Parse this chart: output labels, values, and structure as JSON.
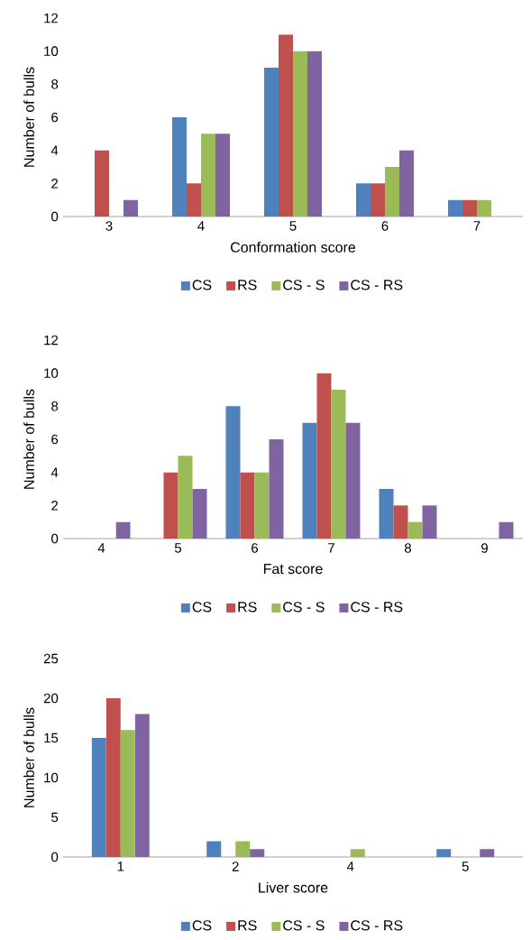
{
  "chart_data": [
    {
      "type": "bar",
      "xlabel": "Conformation score",
      "ylabel": "Number of bulls",
      "categories": [
        "3",
        "4",
        "5",
        "6",
        "7"
      ],
      "ylim": [
        0,
        12
      ],
      "yticks": [
        0,
        2,
        4,
        6,
        8,
        10,
        12
      ],
      "legend": "bottom",
      "series": [
        {
          "name": "CS",
          "color": "#4f81bd",
          "values": [
            0,
            6,
            9,
            2,
            1
          ]
        },
        {
          "name": "RS",
          "color": "#c0504d",
          "values": [
            4,
            2,
            11,
            2,
            1
          ]
        },
        {
          "name": "CS - S",
          "color": "#9bbb59",
          "values": [
            0,
            5,
            10,
            3,
            1
          ]
        },
        {
          "name": "CS - RS",
          "color": "#8064a2",
          "values": [
            1,
            5,
            10,
            4,
            0
          ]
        }
      ]
    },
    {
      "type": "bar",
      "xlabel": "Fat score",
      "ylabel": "Number of bulls",
      "categories": [
        "4",
        "5",
        "6",
        "7",
        "8",
        "9"
      ],
      "ylim": [
        0,
        12
      ],
      "yticks": [
        0,
        2,
        4,
        6,
        8,
        10,
        12
      ],
      "legend": "bottom",
      "series": [
        {
          "name": "CS",
          "color": "#4f81bd",
          "values": [
            0,
            0,
            8,
            7,
            3,
            0
          ]
        },
        {
          "name": "RS",
          "color": "#c0504d",
          "values": [
            0,
            4,
            4,
            10,
            2,
            0
          ]
        },
        {
          "name": "CS - S",
          "color": "#9bbb59",
          "values": [
            0,
            5,
            4,
            9,
            1,
            0
          ]
        },
        {
          "name": "CS - RS",
          "color": "#8064a2",
          "values": [
            1,
            3,
            6,
            7,
            2,
            1
          ]
        }
      ]
    },
    {
      "type": "bar",
      "xlabel": "Liver score",
      "ylabel": "Number of bulls",
      "categories": [
        "1",
        "2",
        "4",
        "5"
      ],
      "ylim": [
        0,
        25
      ],
      "yticks": [
        0,
        5,
        10,
        15,
        20,
        25
      ],
      "legend": "bottom",
      "series": [
        {
          "name": "CS",
          "color": "#4f81bd",
          "values": [
            15,
            2,
            0,
            1
          ]
        },
        {
          "name": "RS",
          "color": "#c0504d",
          "values": [
            20,
            0,
            0,
            0
          ]
        },
        {
          "name": "CS - S",
          "color": "#9bbb59",
          "values": [
            16,
            2,
            1,
            0
          ]
        },
        {
          "name": "CS - RS",
          "color": "#8064a2",
          "values": [
            18,
            1,
            0,
            1
          ]
        }
      ]
    }
  ]
}
